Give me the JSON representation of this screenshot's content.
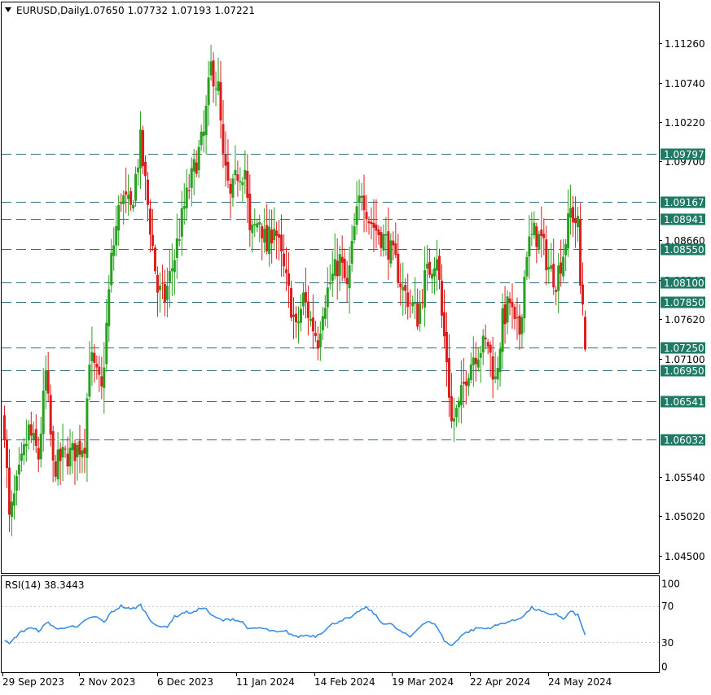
{
  "header": {
    "symbol": "EURUSD,Daily",
    "ohlc": "1.07650 1.07732 1.07193 1.07221"
  },
  "colors": {
    "bull": "#26a01e",
    "bear": "#e01b1b",
    "level_line": "#2f6f7e",
    "level_label_bg": "#1f7a66",
    "rsi_line": "#3d8fe0",
    "frame": "#000000"
  },
  "chart_data": [
    {
      "type": "candlestick",
      "title": "EURUSD,Daily",
      "ylim": [
        1.0427,
        1.118
      ],
      "y_ticks": [
        "1.11260",
        "1.10740",
        "1.10220",
        "1.09700",
        "1.08660",
        "1.08140",
        "1.07620",
        "1.07100",
        "1.05540",
        "1.05020",
        "1.04500"
      ],
      "x_ticks": [
        "29 Sep 2023",
        "2 Nov 2023",
        "6 Dec 2023",
        "11 Jan 2024",
        "14 Feb 2024",
        "19 Mar 2024",
        "22 Apr 2024",
        "24 May 2024"
      ],
      "levels": [
        "1.09797",
        "1.09167",
        "1.08941",
        "1.08550",
        "1.08100",
        "1.07850",
        "1.07250",
        "1.06950",
        "1.06541",
        "1.06032"
      ],
      "last_candle": {
        "open": 1.0765,
        "high": 1.07732,
        "low": 1.07193,
        "close": 1.07221
      },
      "anchors": [
        [
          0,
          1.062
        ],
        [
          2,
          1.0495
        ],
        [
          6,
          1.0555
        ],
        [
          10,
          1.0615
        ],
        [
          14,
          1.058
        ],
        [
          17,
          1.069
        ],
        [
          20,
          1.0565
        ],
        [
          24,
          1.058
        ],
        [
          28,
          1.0585
        ],
        [
          33,
          1.06
        ],
        [
          35,
          1.0715
        ],
        [
          40,
          1.0665
        ],
        [
          44,
          1.084
        ],
        [
          48,
          1.0925
        ],
        [
          52,
          1.0905
        ],
        [
          56,
          1.0995
        ],
        [
          60,
          1.0885
        ],
        [
          63,
          1.08
        ],
        [
          66,
          1.079
        ],
        [
          70,
          1.0845
        ],
        [
          74,
          1.091
        ],
        [
          78,
          1.096
        ],
        [
          82,
          1.1005
        ],
        [
          85,
          1.1095
        ],
        [
          88,
          1.1065
        ],
        [
          90,
          1.097
        ],
        [
          93,
          1.092
        ],
        [
          96,
          1.0955
        ],
        [
          99,
          1.096
        ],
        [
          101,
          1.087
        ],
        [
          105,
          1.0895
        ],
        [
          108,
          1.0855
        ],
        [
          111,
          1.089
        ],
        [
          114,
          1.084
        ],
        [
          118,
          1.078
        ],
        [
          120,
          1.0745
        ],
        [
          123,
          1.079
        ],
        [
          126,
          1.076
        ],
        [
          129,
          1.0735
        ],
        [
          131,
          1.078
        ],
        [
          134,
          1.081
        ],
        [
          138,
          1.084
        ],
        [
          141,
          1.08
        ],
        [
          144,
          1.088
        ],
        [
          147,
          1.0935
        ],
        [
          150,
          1.0895
        ],
        [
          153,
          1.088
        ],
        [
          157,
          1.0865
        ],
        [
          161,
          1.0835
        ],
        [
          164,
          1.08
        ],
        [
          167,
          1.0785
        ],
        [
          170,
          1.0765
        ],
        [
          173,
          1.0815
        ],
        [
          176,
          1.0835
        ],
        [
          178,
          1.085
        ],
        [
          180,
          1.0765
        ],
        [
          182,
          1.071
        ],
        [
          184,
          1.0625
        ],
        [
          187,
          1.0645
        ],
        [
          190,
          1.069
        ],
        [
          193,
          1.0715
        ],
        [
          196,
          1.0725
        ],
        [
          199,
          1.073
        ],
        [
          202,
          1.068
        ],
        [
          205,
          1.076
        ],
        [
          208,
          1.0785
        ],
        [
          210,
          1.075
        ],
        [
          212,
          1.0745
        ],
        [
          215,
          1.0855
        ],
        [
          218,
          1.0875
        ],
        [
          221,
          1.0865
        ],
        [
          224,
          1.083
        ],
        [
          227,
          1.0815
        ],
        [
          230,
          1.085
        ],
        [
          233,
          1.0905
        ],
        [
          236,
          1.0885
        ],
        [
          237,
          1.0805
        ],
        [
          239,
          1.0765
        ]
      ]
    },
    {
      "type": "line",
      "title": "RSI(14) 38.3443",
      "ylim": [
        0,
        100
      ],
      "y_ticks": [
        "100",
        "70",
        "30",
        "0"
      ],
      "levels": [
        70,
        30
      ],
      "anchors": [
        [
          0,
          32
        ],
        [
          2,
          28
        ],
        [
          6,
          40
        ],
        [
          10,
          46
        ],
        [
          14,
          43
        ],
        [
          18,
          52
        ],
        [
          22,
          44
        ],
        [
          26,
          48
        ],
        [
          30,
          46
        ],
        [
          34,
          56
        ],
        [
          38,
          58
        ],
        [
          41,
          52
        ],
        [
          44,
          63
        ],
        [
          48,
          70
        ],
        [
          52,
          66
        ],
        [
          56,
          71
        ],
        [
          60,
          55
        ],
        [
          64,
          46
        ],
        [
          67,
          48
        ],
        [
          70,
          58
        ],
        [
          74,
          63
        ],
        [
          78,
          63
        ],
        [
          82,
          69
        ],
        [
          86,
          58
        ],
        [
          90,
          54
        ],
        [
          94,
          56
        ],
        [
          98,
          52
        ],
        [
          101,
          44
        ],
        [
          105,
          46
        ],
        [
          108,
          44
        ],
        [
          112,
          41
        ],
        [
          116,
          42
        ],
        [
          120,
          36
        ],
        [
          124,
          38
        ],
        [
          128,
          37
        ],
        [
          131,
          42
        ],
        [
          135,
          50
        ],
        [
          139,
          55
        ],
        [
          143,
          57
        ],
        [
          146,
          65
        ],
        [
          149,
          68
        ],
        [
          152,
          62
        ],
        [
          155,
          52
        ],
        [
          159,
          50
        ],
        [
          163,
          42
        ],
        [
          167,
          36
        ],
        [
          171,
          48
        ],
        [
          174,
          53
        ],
        [
          178,
          48
        ],
        [
          181,
          32
        ],
        [
          184,
          26
        ],
        [
          188,
          38
        ],
        [
          191,
          42
        ],
        [
          195,
          46
        ],
        [
          198,
          45
        ],
        [
          202,
          48
        ],
        [
          206,
          52
        ],
        [
          210,
          54
        ],
        [
          214,
          60
        ],
        [
          217,
          68
        ],
        [
          220,
          65
        ],
        [
          224,
          60
        ],
        [
          227,
          62
        ],
        [
          230,
          55
        ],
        [
          233,
          64
        ],
        [
          236,
          60
        ],
        [
          238,
          45
        ],
        [
          239,
          38
        ]
      ]
    }
  ]
}
